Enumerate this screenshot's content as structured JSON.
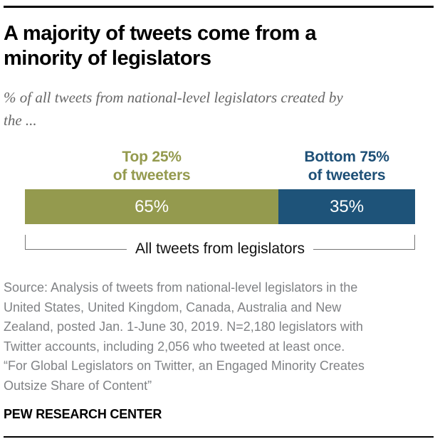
{
  "header": {
    "title_line1": "A majority of tweets come from a",
    "title_line2": "minority of legislators",
    "subtitle_line1": "% of all tweets from national-level legislators created by",
    "subtitle_line2": "the ..."
  },
  "chart": {
    "segments": [
      {
        "label_line1": "Top 25%",
        "label_line2": "of tweeters",
        "value": 65,
        "value_label": "65%",
        "color": "#949a4e",
        "label_color": "#949a4e"
      },
      {
        "label_line1": "Bottom 75%",
        "label_line2": "of tweeters",
        "value": 35,
        "value_label": "35%",
        "color": "#1e5379",
        "label_color": "#1d4f76"
      }
    ],
    "bracket_label": "All tweets from legislators"
  },
  "chart_data": {
    "type": "bar",
    "subtype": "horizontal-stacked",
    "title": "A majority of tweets come from a minority of legislators",
    "subtitle": "% of all tweets from national-level legislators created by the ...",
    "categories": [
      "Top 25% of tweeters",
      "Bottom 75% of tweeters"
    ],
    "values": [
      65,
      35
    ],
    "unit": "%",
    "total_label": "All tweets from legislators",
    "colors": [
      "#949a4e",
      "#1e5379"
    ],
    "xlim": [
      0,
      100
    ],
    "grid": false,
    "legend_position": "above-bar"
  },
  "source": {
    "paragraph1": "Source: Analysis of tweets from national-level legislators in the United States, United Kingdom, Canada, Australia and New Zealand, posted Jan. 1-June 30, 2019. N=2,180 legislators with Twitter accounts, including 2,056 who tweeted at least once.",
    "paragraph2": "“For Global Legislators on Twitter, an Engaged Minority Creates Outsize Share of Content”"
  },
  "footer": {
    "brand": "PEW RESEARCH CENTER"
  }
}
